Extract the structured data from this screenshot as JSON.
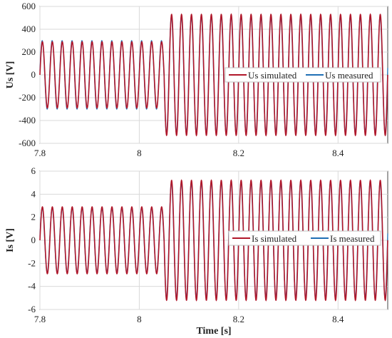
{
  "colors": {
    "simulated": "#b0172a",
    "measured": "#1f6fb5",
    "grid": "#d9d9d9",
    "axis": "#444444"
  },
  "chart_data": [
    {
      "type": "line",
      "ylabel": "Us [V]",
      "xlabel": "",
      "xlim": [
        7.8,
        8.5
      ],
      "ylim": [
        -600,
        600
      ],
      "xticks": [
        7.8,
        8,
        8.2,
        8.4
      ],
      "xtick_labels": [
        "7.8",
        "8",
        "8.2",
        "8.4"
      ],
      "yticks": [
        600,
        400,
        200,
        0,
        -200,
        -400,
        -600
      ],
      "ytick_labels": [
        "600",
        "400",
        "200",
        "0",
        "-200",
        "-400",
        "-600"
      ],
      "grid": true,
      "legend": "center-right",
      "frequency_hz": 50,
      "step_time": 8.05,
      "series": [
        {
          "name": "Us simulated",
          "amplitude_before": 290,
          "amplitude_after": 530
        },
        {
          "name": "Us measured",
          "amplitude_before": 300,
          "amplitude_after": 510
        }
      ]
    },
    {
      "type": "line",
      "ylabel": "Is [V]",
      "xlabel": "Time [s]",
      "xlim": [
        7.8,
        8.5
      ],
      "ylim": [
        -6,
        6
      ],
      "xticks": [
        7.8,
        8,
        8.2,
        8.4
      ],
      "xtick_labels": [
        "7.8",
        "8",
        "8.2",
        "8.4"
      ],
      "yticks": [
        6,
        4,
        2,
        0,
        -2,
        -4,
        -6
      ],
      "ytick_labels": [
        "6",
        "4",
        "2",
        "0",
        "-2",
        "-4",
        "-6"
      ],
      "grid": true,
      "legend": "center-right",
      "frequency_hz": 50,
      "step_time": 8.05,
      "series": [
        {
          "name": "Is simulated",
          "amplitude_before": 2.9,
          "amplitude_after": 5.2
        },
        {
          "name": "Is measured",
          "amplitude_before": 2.8,
          "amplitude_after": 5.0
        }
      ]
    }
  ]
}
